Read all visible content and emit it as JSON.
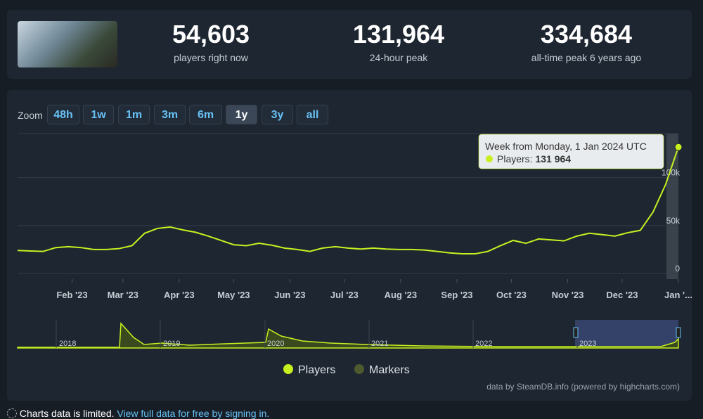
{
  "header": {
    "stats": [
      {
        "value": "54,603",
        "label": "players right now"
      },
      {
        "value": "131,964",
        "label": "24-hour peak"
      },
      {
        "value": "334,684",
        "label": "all-time peak 6 years ago"
      }
    ]
  },
  "zoom": {
    "label": "Zoom",
    "buttons": [
      "48h",
      "1w",
      "1m",
      "3m",
      "6m",
      "1y",
      "3y",
      "all"
    ],
    "active": "1y"
  },
  "chart_data": {
    "type": "line",
    "x": [
      "2023-01-02",
      "2023-01-09",
      "2023-01-16",
      "2023-01-23",
      "2023-01-30",
      "2023-02-06",
      "2023-02-13",
      "2023-02-20",
      "2023-02-27",
      "2023-03-06",
      "2023-03-13",
      "2023-03-20",
      "2023-03-27",
      "2023-04-03",
      "2023-04-10",
      "2023-04-17",
      "2023-04-24",
      "2023-05-01",
      "2023-05-08",
      "2023-05-15",
      "2023-05-22",
      "2023-05-29",
      "2023-06-05",
      "2023-06-12",
      "2023-06-19",
      "2023-06-26",
      "2023-07-03",
      "2023-07-10",
      "2023-07-17",
      "2023-07-24",
      "2023-07-31",
      "2023-08-07",
      "2023-08-14",
      "2023-08-21",
      "2023-08-28",
      "2023-09-04",
      "2023-09-11",
      "2023-09-18",
      "2023-09-25",
      "2023-10-02",
      "2023-10-09",
      "2023-10-16",
      "2023-10-23",
      "2023-10-30",
      "2023-11-06",
      "2023-11-13",
      "2023-11-20",
      "2023-11-27",
      "2023-12-04",
      "2023-12-11",
      "2023-12-18",
      "2023-12-25",
      "2024-01-01"
    ],
    "series": [
      {
        "name": "Players",
        "color": "#c8f020",
        "values": [
          24000,
          23500,
          23000,
          27000,
          28000,
          27000,
          25000,
          25000,
          26000,
          29000,
          42000,
          47000,
          48500,
          45500,
          43000,
          39000,
          34500,
          30000,
          29000,
          31500,
          29500,
          26500,
          25000,
          23000,
          26500,
          28000,
          26500,
          25500,
          26500,
          25500,
          25000,
          25000,
          24500,
          23000,
          21500,
          20500,
          20500,
          23000,
          29000,
          34500,
          31500,
          36000,
          35000,
          34000,
          39000,
          42000,
          40500,
          39000,
          42500,
          45000,
          64000,
          93000,
          131964
        ]
      }
    ],
    "markers": {
      "name": "Markers",
      "color": "#4d5a2e"
    },
    "xlim": [
      "2023-01-02",
      "2024-01-01"
    ],
    "xticks": [
      {
        "value": "2023-02",
        "label": "Feb '23"
      },
      {
        "value": "2023-03",
        "label": "Mar '23"
      },
      {
        "value": "2023-04",
        "label": "Apr '23"
      },
      {
        "value": "2023-05",
        "label": "May '23"
      },
      {
        "value": "2023-06",
        "label": "Jun '23"
      },
      {
        "value": "2023-07",
        "label": "Jul '23"
      },
      {
        "value": "2023-08",
        "label": "Aug '23"
      },
      {
        "value": "2023-09",
        "label": "Sep '23"
      },
      {
        "value": "2023-10",
        "label": "Oct '23"
      },
      {
        "value": "2023-11",
        "label": "Nov '23"
      },
      {
        "value": "2023-12",
        "label": "Dec '23"
      },
      {
        "value": "2024-01",
        "label": "Jan '..."
      }
    ],
    "ylim": [
      0,
      146000
    ],
    "yticks": [
      0,
      {
        "value": 50000,
        "label": "50k"
      },
      {
        "value": 100000,
        "label": "100k"
      }
    ],
    "grid": true,
    "navigator_labels": [
      "2018",
      "2019",
      "2020",
      "2021",
      "2022",
      "2023"
    ]
  },
  "tooltip": {
    "title": "Week from Monday, 1 Jan 2024 UTC",
    "series": "Players:",
    "value": "131 964"
  },
  "credit": "data by SteamDB.info (powered by highcharts.com)",
  "footer": {
    "notice": "Charts data is limited.",
    "link": "View full data for free by signing in."
  }
}
